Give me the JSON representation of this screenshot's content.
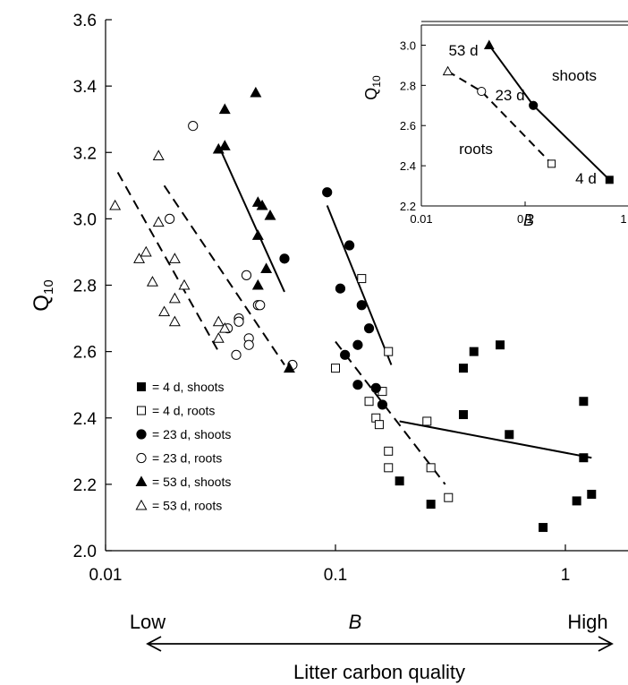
{
  "chart_data": [
    {
      "type": "scatter",
      "title": "",
      "xlabel": "B",
      "ylabel": "Q10",
      "xscale": "log",
      "xlim": [
        0.01,
        1.4
      ],
      "ylim": [
        2.0,
        3.6
      ],
      "x_ticks": [
        0.01,
        0.1,
        1
      ],
      "x_tick_labels": [
        "0.01",
        "0.1",
        "1"
      ],
      "y_ticks": [
        2.0,
        2.2,
        2.4,
        2.6,
        2.8,
        3.0,
        3.2,
        3.4,
        3.6
      ],
      "y_tick_labels": [
        "2.0",
        "2.2",
        "2.4",
        "2.6",
        "2.8",
        "3.0",
        "3.2",
        "3.4",
        "3.6"
      ],
      "grid": false,
      "legend_position": "bottom-left",
      "series": [
        {
          "name": "= 4 d, shoots",
          "marker": "square",
          "fill": "filled",
          "points": [
            [
              0.19,
              2.21
            ],
            [
              0.26,
              2.14
            ],
            [
              0.36,
              2.55
            ],
            [
              0.36,
              2.41
            ],
            [
              0.4,
              2.6
            ],
            [
              0.52,
              2.62
            ],
            [
              0.57,
              2.35
            ],
            [
              0.8,
              2.07
            ],
            [
              1.12,
              2.15
            ],
            [
              1.2,
              2.45
            ],
            [
              1.2,
              2.28
            ],
            [
              1.3,
              2.17
            ]
          ]
        },
        {
          "name": "= 4 d, roots",
          "marker": "square",
          "fill": "open",
          "points": [
            [
              0.1,
              2.55
            ],
            [
              0.13,
              2.82
            ],
            [
              0.14,
              2.45
            ],
            [
              0.15,
              2.4
            ],
            [
              0.155,
              2.38
            ],
            [
              0.16,
              2.48
            ],
            [
              0.17,
              2.3
            ],
            [
              0.17,
              2.25
            ],
            [
              0.17,
              2.6
            ],
            [
              0.25,
              2.39
            ],
            [
              0.26,
              2.25
            ],
            [
              0.31,
              2.16
            ]
          ]
        },
        {
          "name": "= 23 d, shoots",
          "marker": "circle",
          "fill": "filled",
          "points": [
            [
              0.06,
              2.88
            ],
            [
              0.092,
              3.08
            ],
            [
              0.105,
              2.79
            ],
            [
              0.11,
              2.59
            ],
            [
              0.115,
              2.92
            ],
            [
              0.125,
              2.5
            ],
            [
              0.125,
              2.62
            ],
            [
              0.13,
              2.74
            ],
            [
              0.14,
              2.67
            ],
            [
              0.15,
              2.49
            ],
            [
              0.16,
              2.44
            ]
          ]
        },
        {
          "name": "= 23 d, roots",
          "marker": "circle",
          "fill": "open",
          "points": [
            [
              0.019,
              3.0
            ],
            [
              0.024,
              3.28
            ],
            [
              0.034,
              2.67
            ],
            [
              0.037,
              2.59
            ],
            [
              0.038,
              2.7
            ],
            [
              0.038,
              2.69
            ],
            [
              0.041,
              2.83
            ],
            [
              0.042,
              2.64
            ],
            [
              0.042,
              2.62
            ],
            [
              0.046,
              2.74
            ],
            [
              0.047,
              2.74
            ],
            [
              0.065,
              2.56
            ]
          ]
        },
        {
          "name": "= 53 d, shoots",
          "marker": "triangle",
          "fill": "filled",
          "points": [
            [
              0.031,
              3.21
            ],
            [
              0.033,
              3.22
            ],
            [
              0.033,
              3.33
            ],
            [
              0.045,
              3.38
            ],
            [
              0.046,
              2.95
            ],
            [
              0.046,
              3.05
            ],
            [
              0.046,
              2.8
            ],
            [
              0.048,
              3.04
            ],
            [
              0.05,
              2.85
            ],
            [
              0.052,
              3.01
            ],
            [
              0.063,
              2.55
            ]
          ]
        },
        {
          "name": "= 53 d, roots",
          "marker": "triangle",
          "fill": "open",
          "points": [
            [
              0.011,
              3.04
            ],
            [
              0.014,
              2.88
            ],
            [
              0.015,
              2.9
            ],
            [
              0.016,
              2.81
            ],
            [
              0.017,
              3.19
            ],
            [
              0.017,
              2.99
            ],
            [
              0.018,
              2.72
            ],
            [
              0.02,
              2.76
            ],
            [
              0.02,
              2.88
            ],
            [
              0.02,
              2.69
            ],
            [
              0.022,
              2.8
            ],
            [
              0.031,
              2.69
            ],
            [
              0.031,
              2.64
            ],
            [
              0.033,
              2.67
            ]
          ]
        }
      ],
      "fit_lines": [
        {
          "style": "dashed",
          "points": [
            [
              0.0113,
              3.14
            ],
            [
              0.031,
              2.6
            ]
          ]
        },
        {
          "style": "dashed",
          "points": [
            [
              0.018,
              3.1
            ],
            [
              0.06,
              2.56
            ]
          ]
        },
        {
          "style": "dashed",
          "points": [
            [
              0.1,
              2.63
            ],
            [
              0.3,
              2.2
            ]
          ]
        },
        {
          "style": "solid",
          "points": [
            [
              0.032,
              3.2
            ],
            [
              0.06,
              2.78
            ]
          ]
        },
        {
          "style": "solid",
          "points": [
            [
              0.092,
              3.04
            ],
            [
              0.175,
              2.56
            ]
          ]
        },
        {
          "style": "solid",
          "points": [
            [
              0.19,
              2.39
            ],
            [
              1.3,
              2.28
            ]
          ]
        }
      ]
    },
    {
      "type": "line",
      "title": "",
      "xlabel": "B",
      "ylabel": "Q10",
      "xscale": "log",
      "xlim": [
        0.01,
        1.0
      ],
      "ylim": [
        2.2,
        3.1
      ],
      "x_ticks": [
        0.01,
        0.1,
        1
      ],
      "x_tick_labels": [
        "0.01",
        "0.1",
        "1"
      ],
      "y_ticks": [
        2.2,
        2.4,
        2.6,
        2.8,
        3.0
      ],
      "y_tick_labels": [
        "2.2",
        "2.4",
        "2.6",
        "2.8",
        "3.0"
      ],
      "series": [
        {
          "name": "shoots",
          "style": "solid",
          "points": [
            [
              0.045,
              3.0
            ],
            [
              0.12,
              2.7
            ],
            [
              0.65,
              2.33
            ]
          ],
          "markers": [
            "triangle-filled",
            "circle-filled",
            "square-filled"
          ]
        },
        {
          "name": "roots",
          "style": "dashed",
          "points": [
            [
              0.018,
              2.87
            ],
            [
              0.038,
              2.77
            ],
            [
              0.18,
              2.41
            ]
          ],
          "markers": [
            "triangle-open",
            "circle-open",
            "square-open"
          ]
        }
      ],
      "annotations": [
        "53 d",
        "23 d",
        "4 d"
      ]
    }
  ],
  "labels": {
    "y_main": "Q",
    "y_sub": "10",
    "y_inset": "Q",
    "y_inset_sub": "10",
    "x_inset": "B",
    "bottom_low": "Low",
    "bottom_high": "High",
    "bottom_B": "B",
    "bottom_title": "Litter carbon quality",
    "inset_shoots": "shoots",
    "inset_roots": "roots",
    "inset_53d": "53 d",
    "inset_23d": "23 d",
    "inset_4d": "4 d"
  }
}
